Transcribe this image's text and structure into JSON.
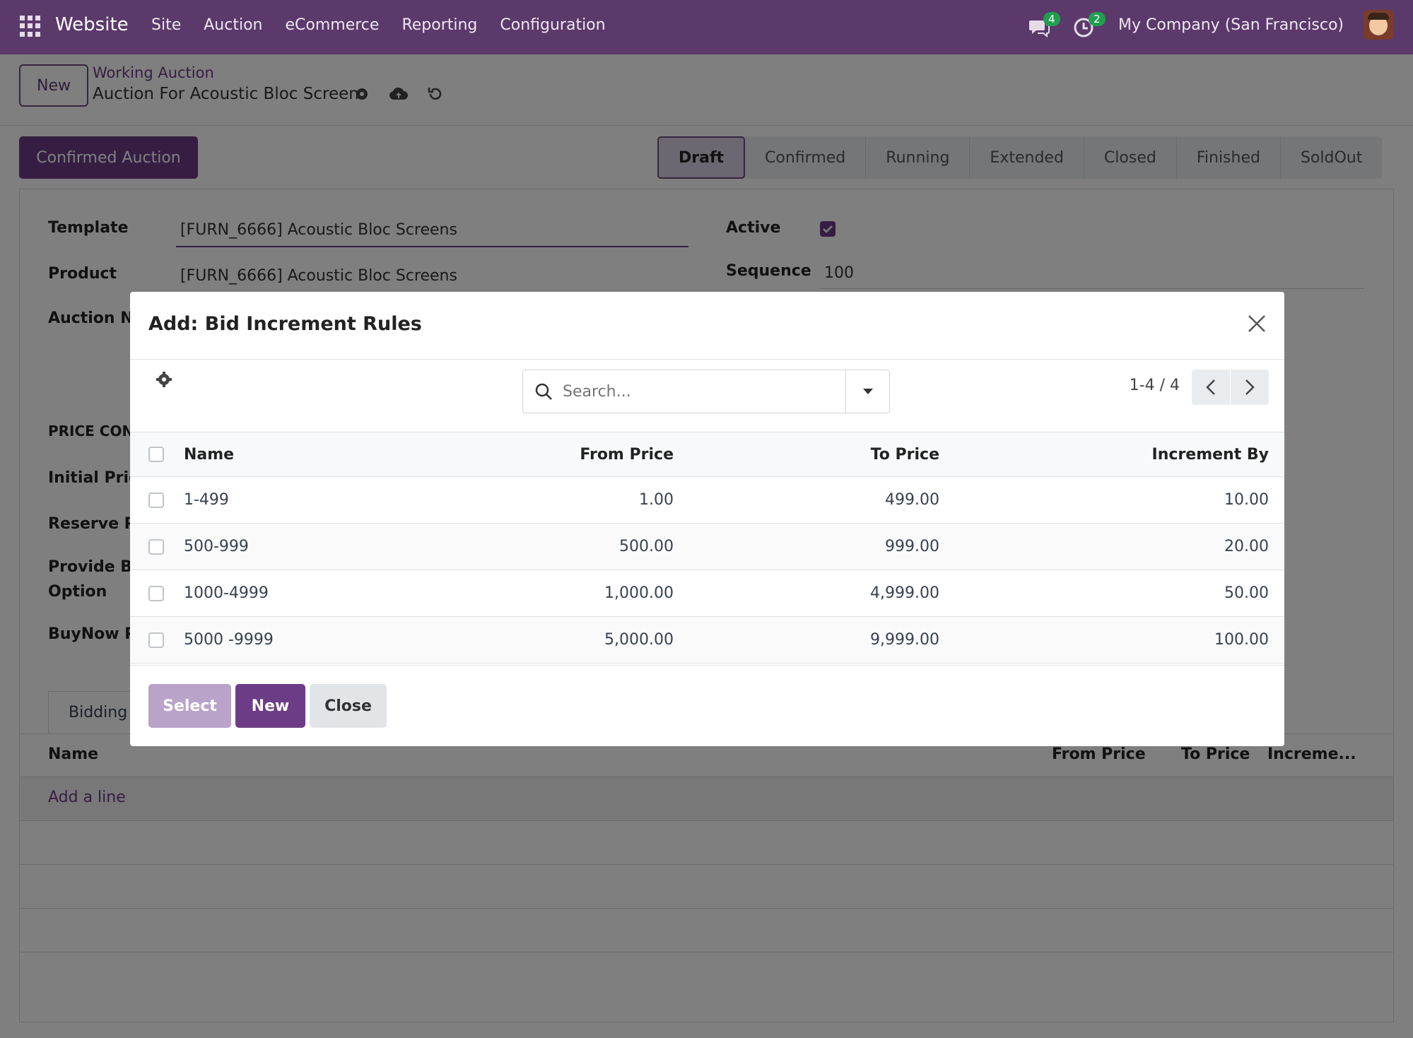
{
  "navbar": {
    "brand": "Website",
    "menu": [
      "Site",
      "Auction",
      "eCommerce",
      "Reporting",
      "Configuration"
    ],
    "messages_count": "4",
    "activities_count": "2",
    "company": "My Company (San Francisco)"
  },
  "breadcrumb": {
    "new_label": "New",
    "parent": "Working Auction",
    "current": "Auction For Acoustic Bloc Screens"
  },
  "status": {
    "confirm_button": "Confirmed Auction",
    "stages": [
      "Draft",
      "Confirmed",
      "Running",
      "Extended",
      "Closed",
      "Finished",
      "SoldOut"
    ],
    "active_stage": "Draft"
  },
  "form": {
    "template_label": "Template",
    "template_value": "[FURN_6666] Acoustic Bloc Screens",
    "product_label": "Product",
    "product_value": "[FURN_6666] Acoustic Bloc Screens",
    "auction_name_label": "Auction Na",
    "active_label": "Active",
    "sequence_label": "Sequence",
    "sequence_value": "100",
    "price_section": "PRICE CON",
    "initial_price_label": "Initial Price",
    "reserve_price_label": "Reserve Pr",
    "provide_label_1": "Provide Bu",
    "provide_label_2": "Option",
    "buynow_label": "BuyNow Pr",
    "tab_bidding": "Bidding",
    "lines_name": "Name",
    "lines_from": "From Price",
    "lines_to": "To Price",
    "lines_inc": "Increme...",
    "add_line": "Add a line"
  },
  "modal": {
    "title": "Add: Bid Increment Rules",
    "search_placeholder": "Search...",
    "pager": "1-4 / 4",
    "columns": {
      "name": "Name",
      "from": "From Price",
      "to": "To Price",
      "inc": "Increment By"
    },
    "rows": [
      {
        "name": "1-499",
        "from": "1.00",
        "to": "499.00",
        "inc": "10.00"
      },
      {
        "name": "500-999",
        "from": "500.00",
        "to": "999.00",
        "inc": "20.00"
      },
      {
        "name": "1000-4999",
        "from": "1,000.00",
        "to": "4,999.00",
        "inc": "50.00"
      },
      {
        "name": "5000 -9999",
        "from": "5,000.00",
        "to": "9,999.00",
        "inc": "100.00"
      }
    ],
    "buttons": {
      "select": "Select",
      "new": "New",
      "close": "Close"
    }
  }
}
